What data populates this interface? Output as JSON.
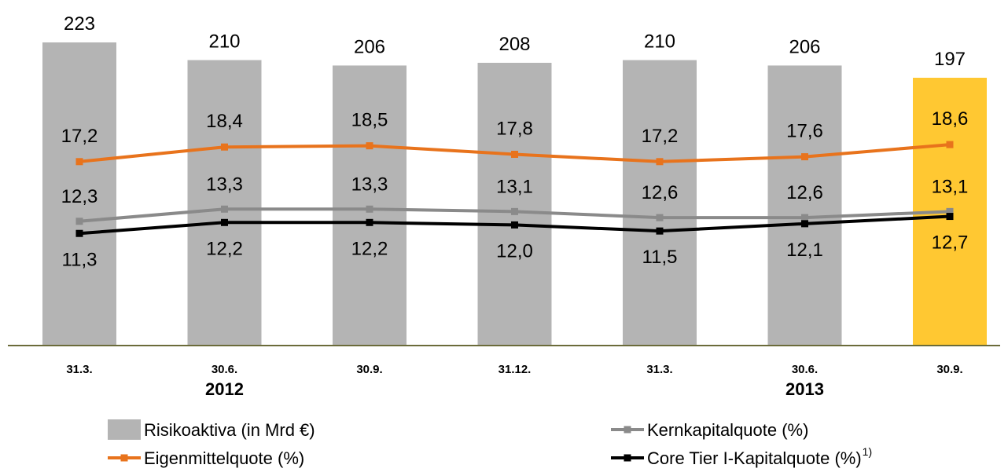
{
  "chart_data": {
    "type": "bar",
    "categories": [
      "31.3.",
      "30.6.",
      "30.9.",
      "31.12.",
      "31.3.",
      "30.6.",
      "30.9."
    ],
    "year_labels": [
      "2012",
      "2013"
    ],
    "series": [
      {
        "name": "Risikoaktiva (in Mrd €)",
        "kind": "bar",
        "color": "#b4b4b4",
        "highlight_color": "#ffc832",
        "values": [
          223,
          210,
          206,
          208,
          210,
          206,
          197
        ],
        "labels": [
          "223",
          "210",
          "206",
          "208",
          "210",
          "206",
          "197"
        ]
      },
      {
        "name": "Eigenmittelquote (%)",
        "kind": "line",
        "color": "#e8731c",
        "values": [
          17.2,
          18.4,
          18.5,
          17.8,
          17.2,
          17.6,
          18.6
        ],
        "labels": [
          "17,2",
          "18,4",
          "18,5",
          "17,8",
          "17,2",
          "17,6",
          "18,6"
        ]
      },
      {
        "name": "Kernkapitalquote (%)",
        "kind": "line",
        "color": "#8a8a8a",
        "values": [
          12.3,
          13.3,
          13.3,
          13.1,
          12.6,
          12.6,
          13.1
        ],
        "labels": [
          "12,3",
          "13,3",
          "13,3",
          "13,1",
          "12,6",
          "12,6",
          "13,1"
        ]
      },
      {
        "name": "Core Tier I-Kapitalquote (%)",
        "name_sup": "1)",
        "kind": "line",
        "color": "#000000",
        "values": [
          11.3,
          12.2,
          12.2,
          12.0,
          11.5,
          12.1,
          12.7
        ],
        "labels": [
          "11,3",
          "12,2",
          "12,2",
          "12,0",
          "11,5",
          "12,1",
          "12,7"
        ]
      }
    ],
    "legend_placement": "bottom",
    "grid": false
  }
}
